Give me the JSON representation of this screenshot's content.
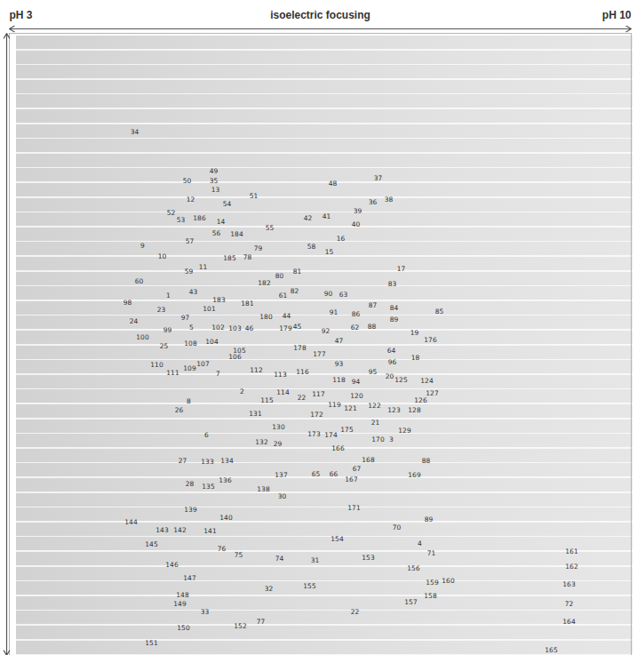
{
  "chart_data": {
    "type": "scatter",
    "xlabel": "isoelectric focusing",
    "xlim": [
      3,
      10
    ],
    "xticks": [
      {
        "value": 3,
        "label": "pH 3"
      },
      {
        "value": 10,
        "label": "pH 10"
      }
    ],
    "ylim": [
      0,
      1
    ],
    "tick_labels": "x",
    "labels": [
      "34",
      "49",
      "50",
      "35",
      "13",
      "12",
      "54",
      "51",
      "48",
      "37",
      "36",
      "38",
      "52",
      "53",
      "186",
      "14",
      "42",
      "41",
      "39",
      "40",
      "55",
      "56",
      "184",
      "57",
      "16",
      "58",
      "15",
      "9",
      "10",
      "79",
      "185",
      "78",
      "11",
      "59",
      "17",
      "81",
      "80",
      "60",
      "83",
      "182",
      "43",
      "82",
      "61",
      "90",
      "63",
      "1",
      "183",
      "181",
      "98",
      "23",
      "101",
      "84",
      "87",
      "85",
      "91",
      "86",
      "89",
      "180",
      "44",
      "97",
      "24",
      "5",
      "102",
      "103",
      "46",
      "179",
      "45",
      "62",
      "88",
      "92",
      "99",
      "100",
      "19",
      "176",
      "47",
      "108",
      "104",
      "25",
      "178",
      "105",
      "106",
      "177",
      "64",
      "18",
      "110",
      "107",
      "109",
      "96",
      "93",
      "111",
      "7",
      "112",
      "113",
      "116",
      "95",
      "118",
      "94",
      "20",
      "125",
      "124",
      "2",
      "114",
      "22",
      "117",
      "120",
      "127",
      "8",
      "115",
      "126",
      "119",
      "121",
      "122",
      "123",
      "128",
      "26",
      "131",
      "172",
      "21",
      "129",
      "130",
      "6",
      "173",
      "174",
      "175",
      "170",
      "3",
      "132",
      "29",
      "166",
      "27",
      "133",
      "134",
      "168",
      "88",
      "67",
      "65",
      "66",
      "137",
      "169",
      "167",
      "28",
      "135",
      "136",
      "138",
      "30",
      "171",
      "139",
      "140",
      "144",
      "89",
      "143",
      "142",
      "141",
      "70",
      "4",
      "145",
      "154",
      "76",
      "75",
      "74",
      "31",
      "71",
      "153",
      "161",
      "146",
      "162",
      "156",
      "147",
      "32",
      "155",
      "159",
      "160",
      "163",
      "148",
      "158",
      "149",
      "157",
      "72",
      "33",
      "22",
      "164",
      "150",
      "152",
      "77",
      "151",
      "165"
    ],
    "x": [
      4.41,
      5.3,
      5.0,
      5.3,
      5.32,
      5.04,
      5.45,
      5.75,
      6.64,
      7.15,
      7.09,
      7.27,
      4.82,
      4.93,
      5.14,
      5.38,
      6.36,
      6.57,
      6.92,
      6.9,
      5.93,
      5.33,
      5.56,
      5.03,
      6.73,
      6.4,
      6.6,
      4.5,
      4.72,
      5.8,
      5.48,
      5.68,
      5.18,
      5.02,
      7.41,
      6.24,
      6.04,
      4.46,
      7.31,
      5.87,
      5.07,
      6.21,
      6.08,
      6.59,
      6.76,
      4.79,
      5.36,
      5.68,
      4.33,
      4.71,
      5.25,
      7.33,
      7.09,
      7.84,
      6.65,
      6.9,
      7.33,
      5.89,
      6.12,
      4.98,
      4.4,
      5.05,
      5.35,
      5.54,
      5.7,
      6.11,
      6.24,
      6.89,
      7.08,
      6.56,
      4.78,
      4.5,
      7.56,
      7.74,
      6.71,
      5.04,
      5.28,
      4.74,
      6.27,
      5.59,
      5.54,
      6.49,
      7.3,
      7.57,
      4.66,
      5.18,
      5.03,
      7.31,
      6.71,
      4.84,
      5.35,
      5.78,
      6.05,
      6.3,
      7.09,
      6.71,
      6.9,
      7.28,
      7.41,
      7.7,
      5.62,
      6.08,
      6.29,
      6.48,
      6.91,
      7.76,
      5.02,
      5.9,
      7.63,
      6.66,
      6.84,
      7.11,
      7.33,
      7.56,
      4.91,
      5.77,
      6.46,
      7.12,
      7.45,
      6.03,
      5.22,
      6.43,
      6.62,
      6.8,
      7.15,
      7.3,
      5.84,
      6.02,
      6.7,
      4.95,
      5.23,
      5.45,
      7.04,
      7.69,
      6.91,
      6.45,
      6.65,
      6.06,
      7.56,
      6.85,
      5.03,
      5.24,
      5.43,
      5.86,
      6.07,
      6.88,
      5.04,
      5.44,
      4.37,
      7.72,
      4.72,
      4.92,
      5.26,
      7.36,
      7.62,
      4.6,
      6.69,
      5.39,
      5.58,
      6.04,
      6.44,
      7.75,
      7.04,
      9.33,
      4.83,
      9.33,
      7.55,
      5.03,
      5.92,
      6.38,
      7.76,
      7.94,
      9.3,
      4.95,
      7.74,
      4.92,
      7.52,
      9.3,
      5.2,
      6.89,
      9.3,
      4.96,
      5.6,
      5.83,
      4.6,
      9.1
    ],
    "y": [
      0.159,
      0.221,
      0.237,
      0.237,
      0.251,
      0.267,
      0.274,
      0.261,
      0.241,
      0.233,
      0.271,
      0.267,
      0.289,
      0.3,
      0.297,
      0.303,
      0.297,
      0.294,
      0.286,
      0.307,
      0.313,
      0.321,
      0.323,
      0.334,
      0.33,
      0.343,
      0.351,
      0.341,
      0.359,
      0.346,
      0.361,
      0.36,
      0.376,
      0.383,
      0.379,
      0.383,
      0.39,
      0.399,
      0.403,
      0.401,
      0.416,
      0.414,
      0.421,
      0.419,
      0.42,
      0.421,
      0.429,
      0.434,
      0.433,
      0.444,
      0.443,
      0.441,
      0.437,
      0.447,
      0.449,
      0.451,
      0.46,
      0.456,
      0.454,
      0.457,
      0.463,
      0.473,
      0.473,
      0.474,
      0.474,
      0.474,
      0.471,
      0.473,
      0.471,
      0.479,
      0.477,
      0.489,
      0.481,
      0.493,
      0.494,
      0.499,
      0.496,
      0.503,
      0.506,
      0.51,
      0.52,
      0.516,
      0.51,
      0.521,
      0.533,
      0.531,
      0.539,
      0.529,
      0.531,
      0.546,
      0.547,
      0.541,
      0.549,
      0.544,
      0.544,
      0.557,
      0.56,
      0.551,
      0.557,
      0.559,
      0.576,
      0.577,
      0.586,
      0.58,
      0.583,
      0.579,
      0.591,
      0.59,
      0.59,
      0.597,
      0.603,
      0.599,
      0.606,
      0.606,
      0.606,
      0.611,
      0.613,
      0.626,
      0.639,
      0.633,
      0.646,
      0.644,
      0.646,
      0.637,
      0.653,
      0.653,
      0.657,
      0.66,
      0.667,
      0.687,
      0.689,
      0.687,
      0.686,
      0.687,
      0.7,
      0.709,
      0.709,
      0.71,
      0.71,
      0.717,
      0.724,
      0.729,
      0.719,
      0.733,
      0.744,
      0.763,
      0.766,
      0.779,
      0.786,
      0.781,
      0.799,
      0.799,
      0.8,
      0.794,
      0.82,
      0.821,
      0.813,
      0.829,
      0.839,
      0.844,
      0.847,
      0.836,
      0.843,
      0.833,
      0.854,
      0.857,
      0.86,
      0.876,
      0.893,
      0.889,
      0.883,
      0.88,
      0.886,
      0.903,
      0.904,
      0.917,
      0.914,
      0.917,
      0.93,
      0.93,
      0.946,
      0.956,
      0.953,
      0.946,
      0.98,
      0.991
    ]
  }
}
